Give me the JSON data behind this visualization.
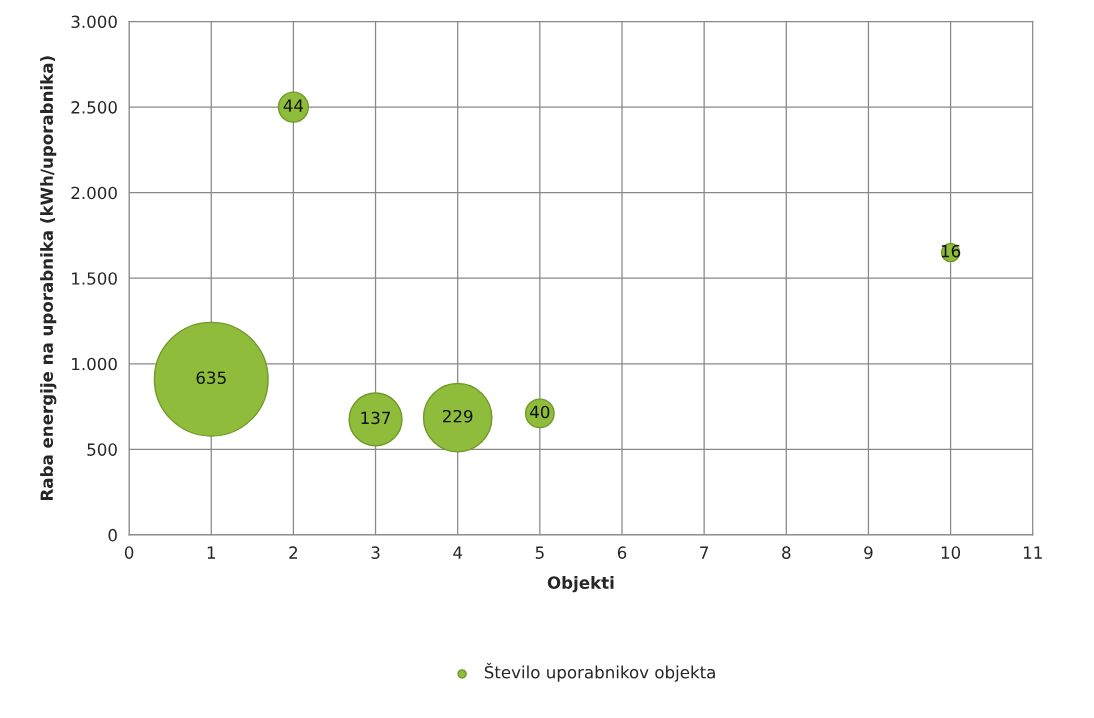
{
  "chart_data": {
    "type": "bubble",
    "xlabel": "Objekti",
    "ylabel": "Raba energije na uporabnika (kWh/uporabnika)",
    "x": [
      1,
      2,
      3,
      4,
      5,
      10
    ],
    "series": [
      {
        "name": "Število uporabnikov objekta",
        "color": "#8fbc3a",
        "values": [
          910,
          2500,
          675,
          685,
          710,
          1650
        ],
        "sizes": [
          635,
          44,
          137,
          229,
          40,
          16
        ],
        "value_labels": [
          "635",
          "44",
          "137",
          "229",
          "40",
          "16"
        ]
      }
    ],
    "xlim": [
      0,
      11
    ],
    "xticks": [
      0,
      1,
      2,
      3,
      4,
      5,
      6,
      7,
      8,
      9,
      10,
      11
    ],
    "ylim": [
      0,
      3000
    ],
    "yticks": [
      0,
      {
        "value": 500,
        "label": "500"
      },
      {
        "value": 1000,
        "label": "1.000"
      },
      {
        "value": 1500,
        "label": "1.500"
      },
      {
        "value": 2000,
        "label": "2.000"
      },
      {
        "value": 2500,
        "label": "2.500"
      },
      {
        "value": 3000,
        "label": "3.000"
      }
    ],
    "grid": true,
    "legend": "bottom"
  }
}
